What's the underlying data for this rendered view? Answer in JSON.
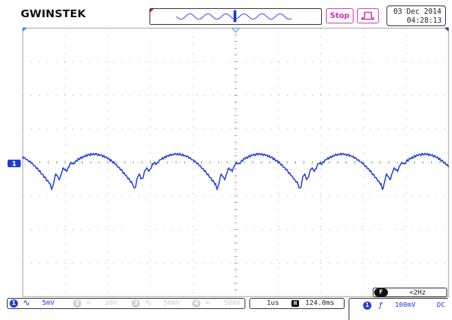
{
  "header": {
    "brand": "GWINSTEK",
    "run_status": "Stop",
    "trigger_mode_icon": "pulse-trigger-icon",
    "date": "03 Dec 2014",
    "time": "04:28:13"
  },
  "channel_marker": "1",
  "channels": [
    {
      "num": "1",
      "coupling_icon": "ac-coupling-icon",
      "scale": "5mV",
      "active": true
    },
    {
      "num": "2",
      "coupling_icon": "dc-coupling-icon",
      "scale": "10V",
      "active": false
    },
    {
      "num": "3",
      "coupling_icon": "ac-coupling-icon",
      "scale": "50mV",
      "active": false
    },
    {
      "num": "4",
      "coupling_icon": "dc-coupling-icon",
      "scale": "50mV",
      "active": false
    }
  ],
  "timebase": {
    "scale": "1us",
    "position_icon": "horizontal-position-icon",
    "position": "124.0ms"
  },
  "frequency": {
    "label": "F",
    "value": "<2Hz"
  },
  "trigger": {
    "source": "1",
    "slope_icon": "rising-edge-icon",
    "level": "100mV",
    "coupling": "DC"
  },
  "colors": {
    "ch1": "#1f3dd6",
    "trigger": "#d02bb0",
    "grid": "#9a9a9a",
    "inactive": "#c8c8c8"
  }
}
